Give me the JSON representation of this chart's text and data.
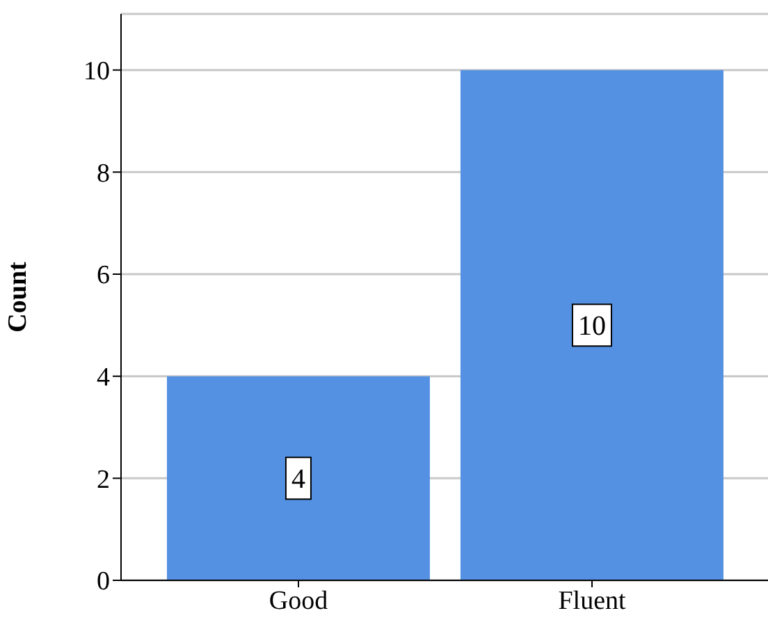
{
  "chart_data": {
    "type": "bar",
    "ylabel": "Count",
    "categories": [
      "Good",
      "Fluent"
    ],
    "values": [
      4,
      10
    ],
    "color": "#5591e2",
    "ylim": [
      0,
      11.1
    ],
    "yticks": [
      0,
      2,
      4,
      6,
      8,
      10
    ],
    "grid": "y",
    "data_labels": true
  }
}
